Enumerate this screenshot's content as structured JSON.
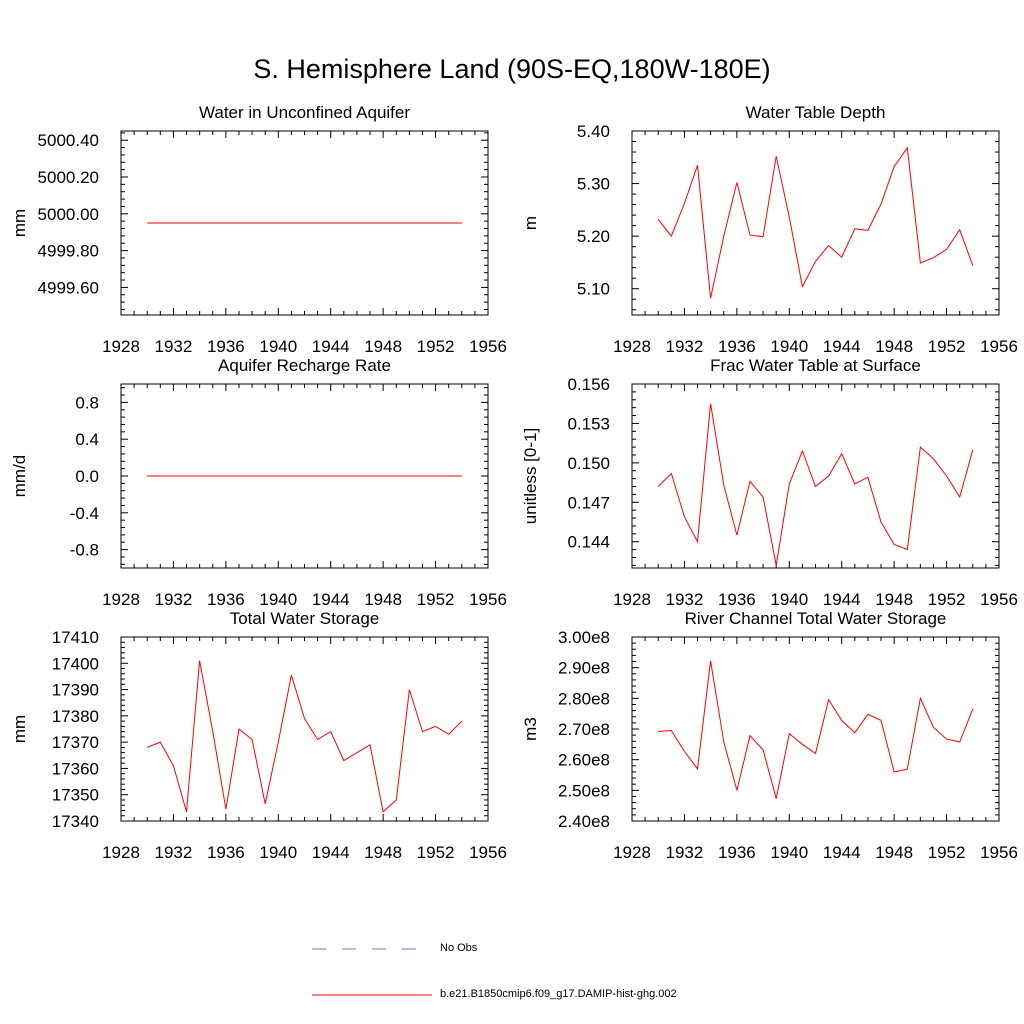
{
  "title": "S. Hemisphere Land (90S-EQ,180W-180E)",
  "line_color": "#ff0000",
  "chart_data": [
    {
      "type": "line",
      "title": "Water in Unconfined Aquifer",
      "ylabel": "mm",
      "xlim": [
        1928,
        1956
      ],
      "xticks": [
        1928,
        1932,
        1936,
        1940,
        1944,
        1948,
        1952,
        1956
      ],
      "ylim": [
        4999.45,
        5000.45
      ],
      "yticks": [
        4999.6,
        4999.8,
        5000.0,
        5000.2,
        5000.4
      ],
      "ytick_labels": [
        "4999.60",
        "4999.80",
        "5000.00",
        "5000.20",
        "5000.40"
      ],
      "series": [
        {
          "x": [
            1930,
            1931,
            1932,
            1933,
            1934,
            1935,
            1936,
            1937,
            1938,
            1939,
            1940,
            1941,
            1942,
            1943,
            1944,
            1945,
            1946,
            1947,
            1948,
            1949,
            1950,
            1951,
            1952,
            1953,
            1954
          ],
          "y": [
            4999.95,
            4999.95,
            4999.95,
            4999.95,
            4999.95,
            4999.95,
            4999.95,
            4999.95,
            4999.95,
            4999.95,
            4999.95,
            4999.95,
            4999.95,
            4999.95,
            4999.95,
            4999.95,
            4999.95,
            4999.95,
            4999.95,
            4999.95,
            4999.95,
            4999.95,
            4999.95,
            4999.95,
            4999.95
          ]
        }
      ]
    },
    {
      "type": "line",
      "title": "Water Table Depth",
      "ylabel": "m",
      "xlim": [
        1928,
        1956
      ],
      "xticks": [
        1928,
        1932,
        1936,
        1940,
        1944,
        1948,
        1952,
        1956
      ],
      "ylim": [
        5.05,
        5.4
      ],
      "yticks": [
        5.1,
        5.2,
        5.3,
        5.4
      ],
      "ytick_labels": [
        "5.10",
        "5.20",
        "5.30",
        "5.40"
      ],
      "series": [
        {
          "x": [
            1930,
            1931,
            1932,
            1933,
            1934,
            1935,
            1936,
            1937,
            1938,
            1939,
            1940,
            1941,
            1942,
            1943,
            1944,
            1945,
            1946,
            1947,
            1948,
            1949,
            1950,
            1951,
            1952,
            1953,
            1954
          ],
          "y": [
            5.232,
            5.2,
            5.262,
            5.335,
            5.082,
            5.2,
            5.302,
            5.202,
            5.199,
            5.352,
            5.236,
            5.104,
            5.152,
            5.182,
            5.16,
            5.214,
            5.211,
            5.261,
            5.332,
            5.368,
            5.149,
            5.159,
            5.175,
            5.212,
            5.144
          ]
        }
      ]
    },
    {
      "type": "line",
      "title": "Aquifer Recharge Rate",
      "ylabel": "mm/d",
      "xlim": [
        1928,
        1956
      ],
      "xticks": [
        1928,
        1932,
        1936,
        1940,
        1944,
        1948,
        1952,
        1956
      ],
      "ylim": [
        -1.0,
        1.0
      ],
      "yticks": [
        -0.8,
        -0.4,
        0.0,
        0.4,
        0.8
      ],
      "ytick_labels": [
        "-0.8",
        "-0.4",
        "0.0",
        "0.4",
        "0.8"
      ],
      "series": [
        {
          "x": [
            1930,
            1931,
            1932,
            1933,
            1934,
            1935,
            1936,
            1937,
            1938,
            1939,
            1940,
            1941,
            1942,
            1943,
            1944,
            1945,
            1946,
            1947,
            1948,
            1949,
            1950,
            1951,
            1952,
            1953,
            1954
          ],
          "y": [
            0,
            0,
            0,
            0,
            0,
            0,
            0,
            0,
            0,
            0,
            0,
            0,
            0,
            0,
            0,
            0,
            0,
            0,
            0,
            0,
            0,
            0,
            0,
            0,
            0
          ]
        }
      ]
    },
    {
      "type": "line",
      "title": "Frac Water Table at Surface",
      "ylabel": "unitless [0-1]",
      "xlim": [
        1928,
        1956
      ],
      "xticks": [
        1928,
        1932,
        1936,
        1940,
        1944,
        1948,
        1952,
        1956
      ],
      "ylim": [
        0.142,
        0.156
      ],
      "yticks": [
        0.144,
        0.147,
        0.15,
        0.153,
        0.156
      ],
      "ytick_labels": [
        "0.144",
        "0.147",
        "0.150",
        "0.153",
        "0.156"
      ],
      "series": [
        {
          "x": [
            1930,
            1931,
            1932,
            1933,
            1934,
            1935,
            1936,
            1937,
            1938,
            1939,
            1940,
            1941,
            1942,
            1943,
            1944,
            1945,
            1946,
            1947,
            1948,
            1949,
            1950,
            1951,
            1952,
            1953,
            1954
          ],
          "y": [
            0.1482,
            0.1492,
            0.1459,
            0.144,
            0.1545,
            0.1483,
            0.1445,
            0.1486,
            0.1474,
            0.1422,
            0.1484,
            0.1509,
            0.1482,
            0.149,
            0.1507,
            0.1484,
            0.1489,
            0.1455,
            0.1438,
            0.1434,
            0.1512,
            0.1503,
            0.149,
            0.1474,
            0.151
          ]
        }
      ]
    },
    {
      "type": "line",
      "title": "Total Water Storage",
      "ylabel": "mm",
      "xlim": [
        1928,
        1956
      ],
      "xticks": [
        1928,
        1932,
        1936,
        1940,
        1944,
        1948,
        1952,
        1956
      ],
      "ylim": [
        17340,
        17410
      ],
      "yticks": [
        17340,
        17350,
        17360,
        17370,
        17380,
        17390,
        17400,
        17410
      ],
      "ytick_labels": [
        "17340",
        "17350",
        "17360",
        "17370",
        "17380",
        "17390",
        "17400",
        "17410"
      ],
      "series": [
        {
          "x": [
            1930,
            1931,
            1932,
            1933,
            1934,
            1935,
            1936,
            1937,
            1938,
            1939,
            1940,
            1941,
            1942,
            1943,
            1944,
            1945,
            1946,
            1947,
            1948,
            1949,
            1950,
            1951,
            1952,
            1953,
            1954
          ],
          "y": [
            17368,
            17370,
            17361,
            17343.5,
            17401,
            17374,
            17344.5,
            17375,
            17371,
            17346.5,
            17370,
            17395.5,
            17379,
            17371,
            17374,
            17363,
            17366,
            17369,
            17343.5,
            17348,
            17390,
            17374,
            17376,
            17373,
            17378
          ]
        }
      ]
    },
    {
      "type": "line",
      "title": "River Channel Total Water Storage",
      "ylabel": "m3",
      "xlim": [
        1928,
        1956
      ],
      "xticks": [
        1928,
        1932,
        1936,
        1940,
        1944,
        1948,
        1952,
        1956
      ],
      "ylim": [
        240000000,
        300000000
      ],
      "yticks": [
        240000000,
        250000000,
        260000000,
        270000000,
        280000000,
        290000000,
        300000000
      ],
      "ytick_labels": [
        "2.40e8",
        "2.50e8",
        "2.60e8",
        "2.70e8",
        "2.80e8",
        "2.90e8",
        "3.00e8"
      ],
      "series": [
        {
          "x": [
            1930,
            1931,
            1932,
            1933,
            1934,
            1935,
            1936,
            1937,
            1938,
            1939,
            1940,
            1941,
            1942,
            1943,
            1944,
            1945,
            1946,
            1947,
            1948,
            1949,
            1950,
            1951,
            1952,
            1953,
            1954
          ],
          "y": [
            269200000,
            269500000,
            262700000,
            257000000,
            292200000,
            265800000,
            250000000,
            267800000,
            263200000,
            247300000,
            268500000,
            265000000,
            262000000,
            279600000,
            272800000,
            268800000,
            274800000,
            272800000,
            256000000,
            256900000,
            280000000,
            270500000,
            266700000,
            265800000,
            276500000
          ]
        }
      ]
    }
  ],
  "legend": [
    {
      "label": "No Obs",
      "color": "#7777cc",
      "dashed": true
    },
    {
      "label": "b.e21.B1850cmip6.f09_g17.DAMIP-hist-ghg.002",
      "color": "#ff0000",
      "dashed": false
    }
  ]
}
